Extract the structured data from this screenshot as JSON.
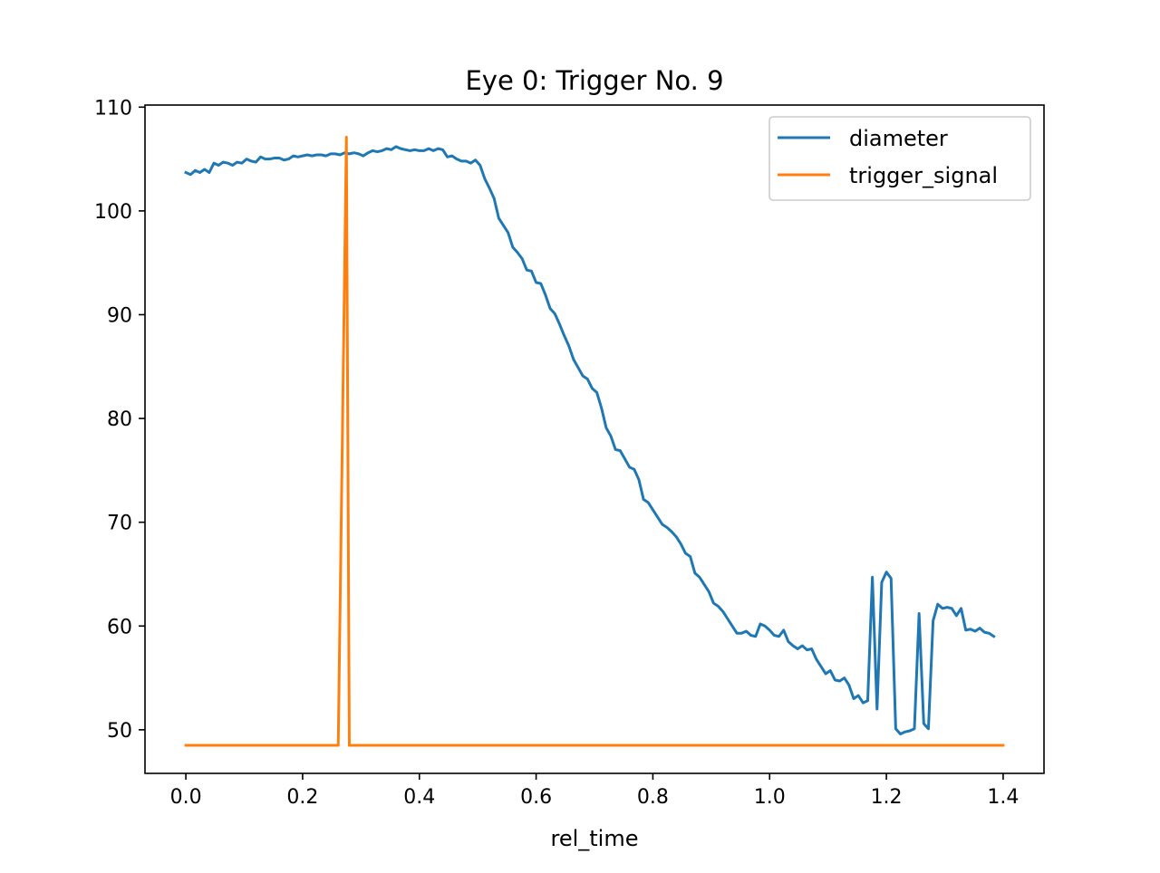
{
  "chart_data": {
    "type": "line",
    "title": "Eye 0: Trigger No. 9",
    "xlabel": "rel_time",
    "ylabel": "",
    "xlim": [
      -0.07,
      1.47
    ],
    "ylim": [
      45.8,
      110.2
    ],
    "xticks": [
      0.0,
      0.2,
      0.4,
      0.6,
      0.8,
      1.0,
      1.2,
      1.4
    ],
    "xtick_labels": [
      "0.0",
      "0.2",
      "0.4",
      "0.6",
      "0.8",
      "1.0",
      "1.2",
      "1.4"
    ],
    "yticks": [
      50,
      60,
      70,
      80,
      90,
      100,
      110
    ],
    "ytick_labels": [
      "50",
      "60",
      "70",
      "80",
      "90",
      "100",
      "110"
    ],
    "grid": false,
    "legend_position": "top-right",
    "series": [
      {
        "name": "diameter",
        "color": "#1f77b4",
        "points": [
          [
            0.0,
            103.7
          ],
          [
            0.008,
            103.5
          ],
          [
            0.016,
            103.9
          ],
          [
            0.024,
            103.7
          ],
          [
            0.032,
            104.0
          ],
          [
            0.04,
            103.7
          ],
          [
            0.048,
            104.6
          ],
          [
            0.056,
            104.4
          ],
          [
            0.064,
            104.7
          ],
          [
            0.072,
            104.6
          ],
          [
            0.08,
            104.4
          ],
          [
            0.088,
            104.7
          ],
          [
            0.096,
            104.6
          ],
          [
            0.104,
            105.0
          ],
          [
            0.112,
            104.8
          ],
          [
            0.12,
            104.7
          ],
          [
            0.128,
            105.2
          ],
          [
            0.136,
            105.0
          ],
          [
            0.144,
            105.0
          ],
          [
            0.152,
            105.1
          ],
          [
            0.16,
            105.1
          ],
          [
            0.168,
            104.9
          ],
          [
            0.176,
            105.0
          ],
          [
            0.184,
            105.3
          ],
          [
            0.192,
            105.2
          ],
          [
            0.2,
            105.3
          ],
          [
            0.208,
            105.4
          ],
          [
            0.216,
            105.3
          ],
          [
            0.224,
            105.4
          ],
          [
            0.232,
            105.4
          ],
          [
            0.24,
            105.3
          ],
          [
            0.248,
            105.5
          ],
          [
            0.256,
            105.5
          ],
          [
            0.264,
            105.4
          ],
          [
            0.272,
            105.6
          ],
          [
            0.28,
            105.5
          ],
          [
            0.288,
            105.6
          ],
          [
            0.296,
            105.5
          ],
          [
            0.304,
            105.3
          ],
          [
            0.312,
            105.6
          ],
          [
            0.32,
            105.8
          ],
          [
            0.328,
            105.7
          ],
          [
            0.336,
            105.8
          ],
          [
            0.344,
            106.0
          ],
          [
            0.352,
            105.9
          ],
          [
            0.36,
            106.2
          ],
          [
            0.368,
            106.0
          ],
          [
            0.376,
            105.9
          ],
          [
            0.384,
            105.8
          ],
          [
            0.392,
            105.9
          ],
          [
            0.4,
            105.8
          ],
          [
            0.408,
            105.8
          ],
          [
            0.416,
            106.0
          ],
          [
            0.424,
            105.8
          ],
          [
            0.432,
            106.0
          ],
          [
            0.44,
            105.9
          ],
          [
            0.448,
            105.2
          ],
          [
            0.456,
            105.3
          ],
          [
            0.464,
            105.0
          ],
          [
            0.472,
            104.8
          ],
          [
            0.48,
            104.8
          ],
          [
            0.488,
            104.6
          ],
          [
            0.496,
            104.9
          ],
          [
            0.504,
            104.4
          ],
          [
            0.512,
            103.1
          ],
          [
            0.52,
            102.2
          ],
          [
            0.528,
            101.2
          ],
          [
            0.536,
            99.3
          ],
          [
            0.544,
            98.6
          ],
          [
            0.552,
            97.9
          ],
          [
            0.56,
            96.5
          ],
          [
            0.568,
            96.0
          ],
          [
            0.576,
            95.4
          ],
          [
            0.584,
            94.3
          ],
          [
            0.592,
            94.2
          ],
          [
            0.6,
            93.1
          ],
          [
            0.608,
            93.0
          ],
          [
            0.616,
            91.9
          ],
          [
            0.624,
            90.6
          ],
          [
            0.632,
            90.1
          ],
          [
            0.64,
            89.1
          ],
          [
            0.648,
            88.0
          ],
          [
            0.656,
            87.0
          ],
          [
            0.664,
            85.7
          ],
          [
            0.672,
            84.9
          ],
          [
            0.68,
            84.1
          ],
          [
            0.688,
            83.8
          ],
          [
            0.696,
            82.9
          ],
          [
            0.704,
            82.5
          ],
          [
            0.712,
            81.0
          ],
          [
            0.72,
            79.1
          ],
          [
            0.728,
            78.3
          ],
          [
            0.736,
            77.0
          ],
          [
            0.744,
            76.9
          ],
          [
            0.752,
            76.1
          ],
          [
            0.76,
            75.3
          ],
          [
            0.768,
            75.1
          ],
          [
            0.776,
            74.1
          ],
          [
            0.784,
            72.2
          ],
          [
            0.792,
            71.9
          ],
          [
            0.8,
            71.2
          ],
          [
            0.808,
            70.5
          ],
          [
            0.816,
            69.8
          ],
          [
            0.824,
            69.5
          ],
          [
            0.832,
            69.1
          ],
          [
            0.84,
            68.6
          ],
          [
            0.848,
            67.9
          ],
          [
            0.856,
            67.0
          ],
          [
            0.864,
            66.7
          ],
          [
            0.872,
            65.1
          ],
          [
            0.88,
            64.7
          ],
          [
            0.888,
            64.0
          ],
          [
            0.896,
            63.3
          ],
          [
            0.904,
            62.2
          ],
          [
            0.912,
            61.9
          ],
          [
            0.92,
            61.4
          ],
          [
            0.928,
            60.7
          ],
          [
            0.936,
            60.0
          ],
          [
            0.944,
            59.3
          ],
          [
            0.952,
            59.3
          ],
          [
            0.96,
            59.5
          ],
          [
            0.968,
            59.1
          ],
          [
            0.976,
            59.0
          ],
          [
            0.984,
            60.2
          ],
          [
            0.992,
            60.0
          ],
          [
            1.0,
            59.6
          ],
          [
            1.008,
            59.1
          ],
          [
            1.016,
            59.0
          ],
          [
            1.024,
            59.6
          ],
          [
            1.032,
            58.5
          ],
          [
            1.04,
            58.1
          ],
          [
            1.048,
            57.8
          ],
          [
            1.056,
            58.1
          ],
          [
            1.064,
            57.7
          ],
          [
            1.072,
            57.8
          ],
          [
            1.08,
            56.8
          ],
          [
            1.088,
            56.1
          ],
          [
            1.096,
            55.4
          ],
          [
            1.104,
            55.7
          ],
          [
            1.112,
            54.8
          ],
          [
            1.12,
            54.7
          ],
          [
            1.128,
            55.0
          ],
          [
            1.136,
            54.3
          ],
          [
            1.144,
            53.0
          ],
          [
            1.152,
            53.3
          ],
          [
            1.16,
            52.6
          ],
          [
            1.168,
            52.8
          ],
          [
            1.176,
            64.7
          ],
          [
            1.184,
            52.0
          ],
          [
            1.192,
            64.2
          ],
          [
            1.2,
            65.2
          ],
          [
            1.208,
            64.6
          ],
          [
            1.216,
            50.1
          ],
          [
            1.224,
            49.6
          ],
          [
            1.232,
            49.8
          ],
          [
            1.24,
            49.9
          ],
          [
            1.248,
            50.1
          ],
          [
            1.256,
            61.2
          ],
          [
            1.264,
            50.6
          ],
          [
            1.272,
            50.1
          ],
          [
            1.28,
            60.5
          ],
          [
            1.288,
            62.1
          ],
          [
            1.296,
            61.7
          ],
          [
            1.304,
            61.8
          ],
          [
            1.312,
            61.7
          ],
          [
            1.32,
            61.0
          ],
          [
            1.328,
            61.7
          ],
          [
            1.336,
            59.6
          ],
          [
            1.344,
            59.7
          ],
          [
            1.352,
            59.5
          ],
          [
            1.36,
            59.8
          ],
          [
            1.368,
            59.4
          ],
          [
            1.376,
            59.3
          ],
          [
            1.384,
            59.0
          ]
        ]
      },
      {
        "name": "trigger_signal",
        "color": "#ff7f0e",
        "points": [
          [
            0.0,
            48.5
          ],
          [
            0.261,
            48.5
          ],
          [
            0.275,
            107.1
          ],
          [
            0.28,
            48.5
          ],
          [
            1.4,
            48.5
          ]
        ]
      }
    ]
  }
}
